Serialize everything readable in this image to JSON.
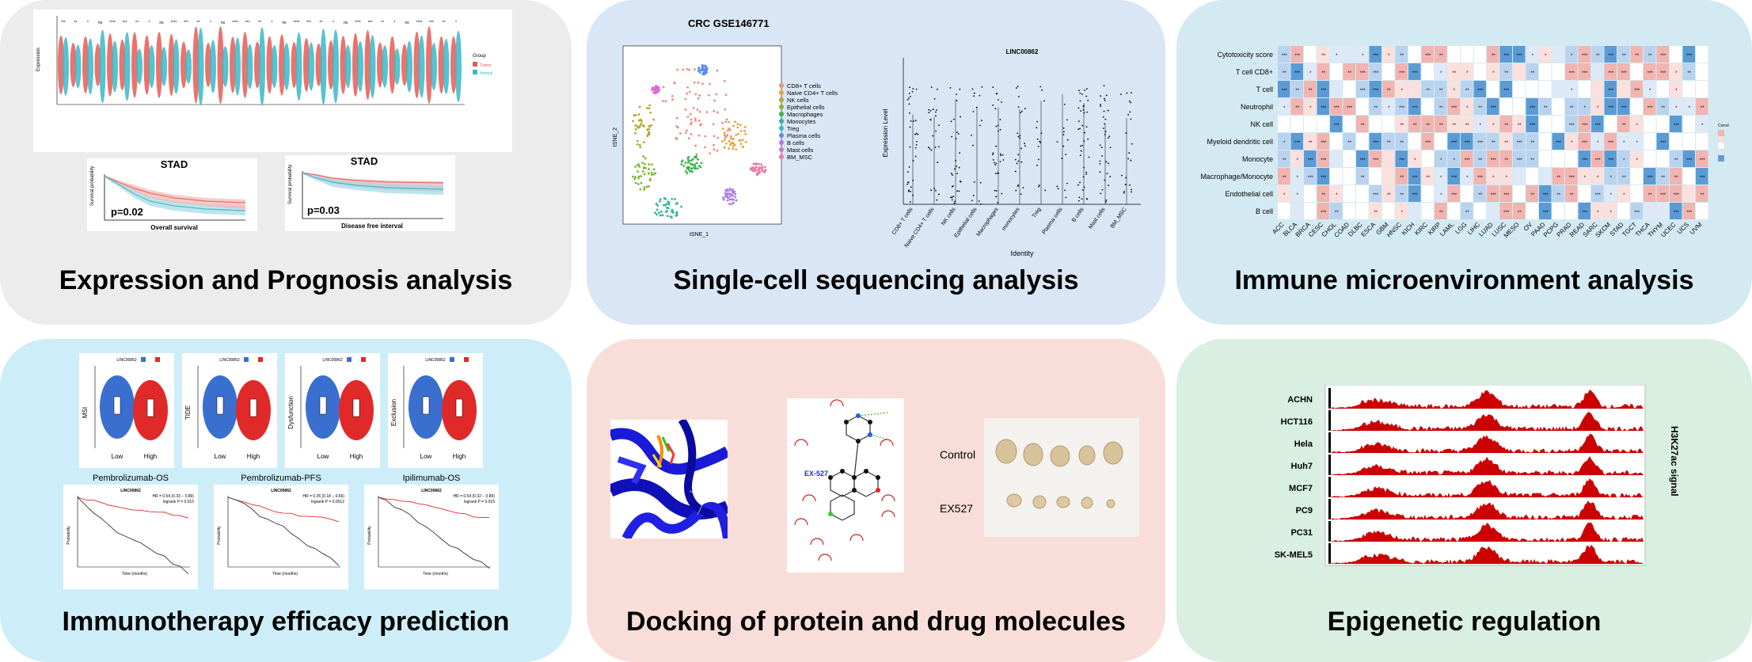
{
  "panels": {
    "expression": {
      "title": "Expression and Prognosis analysis",
      "bg": "#ececec",
      "km1_title": "STAD",
      "km1_p": "p=0.02",
      "km1_x": "Overall survival",
      "km1_y": "Survival probability",
      "km2_title": "STAD",
      "km2_p": "p=0.03",
      "km2_x": "Disease free interval",
      "km2_y": "Survival probability",
      "violin_legend_title": "Group",
      "violin_legend_items": [
        "Tumor",
        "Normal"
      ],
      "violin_y": "Expression"
    },
    "singlecell": {
      "title": "Single-cell sequencing analysis",
      "bg": "#d9e6f5",
      "tsne_title": "CRC GSE146771",
      "tsne_x": "tSNE_1",
      "tsne_y": "tSNE_2",
      "tsne_legend": [
        "CD8+ T cells",
        "Naive CD4+ T cells",
        "NK cells",
        "Epithelial cells",
        "Macrophages",
        "Monocytes",
        "Treg",
        "Plasma cells",
        "B cells",
        "Mast cells",
        "BM_MSC"
      ],
      "violin_title": "LINC00862",
      "violin_x": "Identity",
      "violin_y": "Expression Level",
      "violin_categories": [
        "CD8+ T cells",
        "Naive CD4+ T cells",
        "NK cells",
        "Epithelial cells",
        "Macrophages",
        "monocytes",
        "Treg",
        "Plasma cells",
        "B cells",
        "Mast cells",
        "BM_MSC"
      ]
    },
    "immune": {
      "title": "Immune microenvironment analysis",
      "bg": "#d4eaf2",
      "rows": [
        "Cytotoxicity score",
        "T cell CD8+",
        "T cell",
        "Neutrophil",
        "NK cell",
        "Myeloid dendritic cell",
        "Monocyte",
        "Macrophage/Monocyte",
        "Endothelial cell",
        "B cell"
      ],
      "cols": [
        "ACC",
        "BLCA",
        "BRCA",
        "CESC",
        "CHOL",
        "COAD",
        "DLBC",
        "ESCA",
        "GBM",
        "HNSC",
        "KICH",
        "KIRC",
        "KIRP",
        "LAML",
        "LGG",
        "LIHC",
        "LUAD",
        "LUSC",
        "MESO",
        "OV",
        "PAAD",
        "PCPG",
        "PRAD",
        "READ",
        "SARC",
        "SKCM",
        "STAD",
        "TGCT",
        "THCA",
        "THYM",
        "UCEC",
        "UCS",
        "UVM"
      ],
      "legend_title": "Correlation"
    },
    "immunotherapy": {
      "title": "Immunotherapy efficacy prediction",
      "bg": "#cdeef8",
      "violins": [
        {
          "y": "MSI",
          "legend": "LINC00862"
        },
        {
          "y": "TIDE",
          "legend": "LINC00862"
        },
        {
          "y": "Dysfunction",
          "legend": "LINC00862"
        },
        {
          "y": "Exclusion",
          "legend": "LINC00862"
        }
      ],
      "violin_groups": [
        "Low",
        "High"
      ],
      "km": [
        {
          "title": "Pembrolizumab-OS",
          "sub": "LINC00862",
          "stats": "HR = 0.54 (0.33 − 0.89)\nlogrank P = 0.015"
        },
        {
          "title": "Pembrolizumab-PFS",
          "sub": "LINC00862",
          "stats": "HR = 0.35 (0.18 − 0.66)\nlogrank P = 0.0012"
        },
        {
          "title": "Ipilimumab-OS",
          "sub": "LINC00862",
          "stats": "HR = 0.54 (0.32 − 0.89)\nlogrank P = 0.015"
        }
      ],
      "km_x": "Time (months)",
      "km_y": "Probability"
    },
    "docking": {
      "title": "Docking of protein and drug molecules",
      "bg": "#f8ddd8",
      "ligand_label": "EX-527",
      "rows": [
        "Control",
        "EX527"
      ]
    },
    "epigenetic": {
      "title": "Epigenetic regulation",
      "bg": "#d8efe2",
      "tracks": [
        "ACHN",
        "HCT116",
        "Hela",
        "Huh7",
        "MCF7",
        "PC9",
        "PC31",
        "SK-MEL5"
      ],
      "signal_label": "H3K27ac signal",
      "track_color": "#cc0000"
    }
  }
}
